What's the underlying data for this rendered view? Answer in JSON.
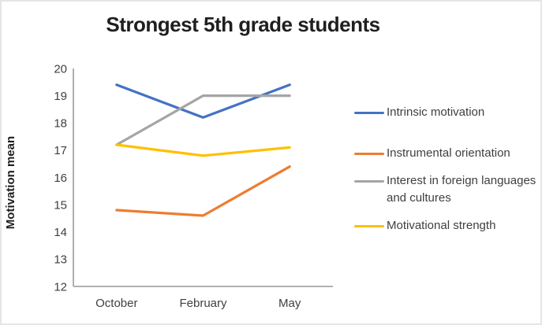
{
  "window": {
    "background": "#ffffff",
    "border_color": "#e5e5e5"
  },
  "chart_data": {
    "type": "line",
    "title": "Strongest 5th grade students",
    "xlabel": "",
    "ylabel": "Motivation mean",
    "categories": [
      "October",
      "February",
      "May"
    ],
    "series": [
      {
        "name": "Intrinsic motivation",
        "color": "#4472C4",
        "values": [
          19.4,
          18.2,
          19.4
        ]
      },
      {
        "name": "Instrumental orientation",
        "color": "#ED7D31",
        "values": [
          14.8,
          14.6,
          16.4
        ]
      },
      {
        "name": "Interest in foreign languages and cultures",
        "color": "#A5A5A5",
        "values": [
          17.2,
          19,
          19
        ]
      },
      {
        "name": "Motivational strength",
        "color": "#FFC000",
        "values": [
          17.2,
          16.8,
          17.1
        ]
      }
    ],
    "ylim": [
      12,
      20
    ],
    "ytick_step": 1,
    "ytick_labels": [
      "12",
      "13",
      "14",
      "15",
      "16",
      "17",
      "18",
      "19",
      "20"
    ],
    "grid": false,
    "legend_position": "right",
    "axis_color": "#A6A6A6",
    "tick_text_color": "#3f3f3f",
    "title_color": "#1f1f1f"
  }
}
